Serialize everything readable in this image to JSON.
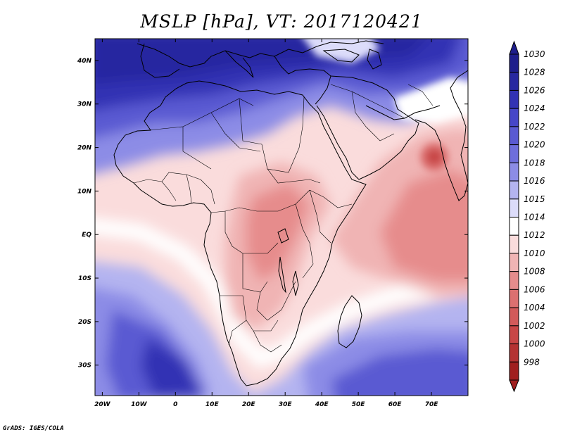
{
  "title": "MSLP [hPa], VT: 2017120421",
  "credit": "GrADS: IGES/COLA",
  "map": {
    "lon_range": [
      -22,
      80
    ],
    "lat_range": [
      -37,
      45
    ],
    "lat_ticks": [
      {
        "value": 40,
        "label": "40N"
      },
      {
        "value": 30,
        "label": "30N"
      },
      {
        "value": 20,
        "label": "20N"
      },
      {
        "value": 10,
        "label": "10N"
      },
      {
        "value": 0,
        "label": "EQ"
      },
      {
        "value": -10,
        "label": "10S"
      },
      {
        "value": -20,
        "label": "20S"
      },
      {
        "value": -30,
        "label": "30S"
      }
    ],
    "lon_ticks": [
      {
        "value": -20,
        "label": "20W"
      },
      {
        "value": -10,
        "label": "10W"
      },
      {
        "value": 0,
        "label": "0"
      },
      {
        "value": 10,
        "label": "10E"
      },
      {
        "value": 20,
        "label": "20E"
      },
      {
        "value": 30,
        "label": "30E"
      },
      {
        "value": 40,
        "label": "40E"
      },
      {
        "value": 50,
        "label": "50E"
      },
      {
        "value": 60,
        "label": "60E"
      },
      {
        "value": 70,
        "label": "70E"
      }
    ]
  },
  "colorbar": {
    "levels": [
      {
        "label": "1030",
        "color": "#1e1e8c"
      },
      {
        "label": "1028",
        "color": "#2828a0"
      },
      {
        "label": "1026",
        "color": "#3232b4"
      },
      {
        "label": "1024",
        "color": "#4646c8"
      },
      {
        "label": "1022",
        "color": "#5a5ad2"
      },
      {
        "label": "1020",
        "color": "#6e6edc"
      },
      {
        "label": "1018",
        "color": "#8c8ce6"
      },
      {
        "label": "1016",
        "color": "#b4b4f0"
      },
      {
        "label": "1015",
        "color": "#dcdcfa"
      },
      {
        "label": "1014",
        "color": "#ffffff"
      },
      {
        "label": "1012",
        "color": "#fadcdc"
      },
      {
        "label": "1010",
        "color": "#f0b4b4"
      },
      {
        "label": "1008",
        "color": "#e68c8c"
      },
      {
        "label": "1006",
        "color": "#dc7070"
      },
      {
        "label": "1004",
        "color": "#d25a5a"
      },
      {
        "label": "1002",
        "color": "#c84646"
      },
      {
        "label": "1000",
        "color": "#b43232"
      },
      {
        "label": "998",
        "color": "#a01e1e"
      }
    ]
  }
}
